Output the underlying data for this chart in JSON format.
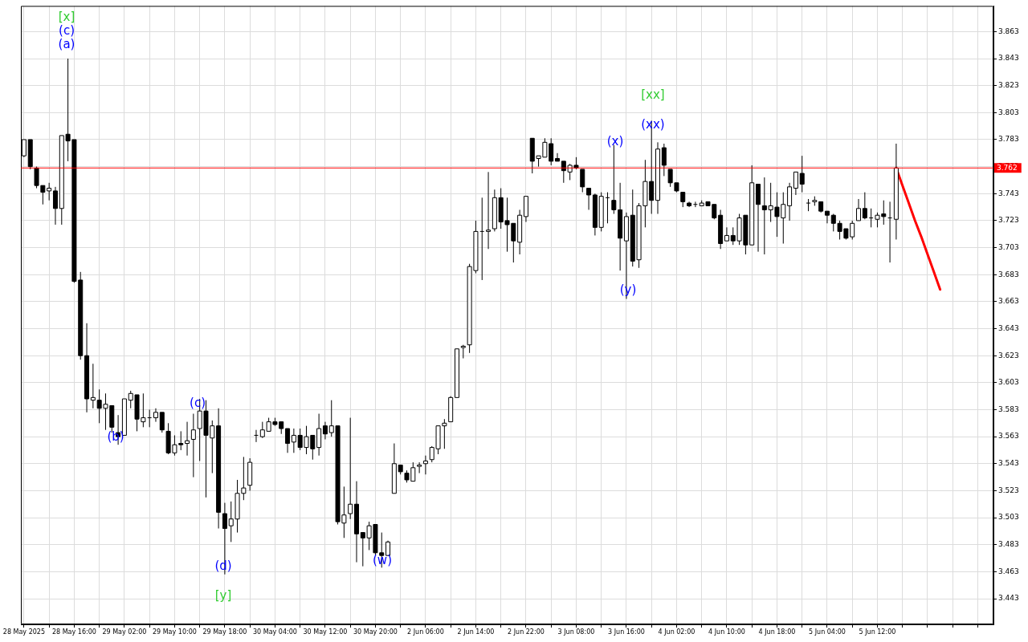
{
  "chart_data": {
    "type": "candlestick",
    "categories": [
      "28 May 2025",
      null,
      null,
      null,
      null,
      null,
      null,
      null,
      "28 May 16:00",
      null,
      null,
      null,
      null,
      null,
      null,
      null,
      "29 May 02:00",
      null,
      null,
      null,
      null,
      null,
      null,
      null,
      "29 May 10:00",
      null,
      null,
      null,
      null,
      null,
      null,
      null,
      "29 May 18:00",
      null,
      null,
      null,
      null,
      null,
      null,
      null,
      "30 May 04:00",
      null,
      null,
      null,
      null,
      null,
      null,
      null,
      "30 May 12:00",
      null,
      null,
      null,
      null,
      null,
      null,
      null,
      "30 May 20:00",
      null,
      null,
      null,
      null,
      null,
      null,
      null,
      "2 Jun 06:00",
      null,
      null,
      null,
      null,
      null,
      null,
      null,
      "2 Jun 14:00",
      null,
      null,
      null,
      null,
      null,
      null,
      null,
      "2 Jun 22:00",
      null,
      null,
      null,
      null,
      null,
      null,
      null,
      "3 Jun 08:00",
      null,
      null,
      null,
      null,
      null,
      null,
      null,
      "3 Jun 16:00",
      null,
      null,
      null,
      null,
      null,
      null,
      null,
      "4 Jun 02:00",
      null,
      null,
      null,
      null,
      null,
      null,
      null,
      "4 Jun 10:00",
      null,
      null,
      null,
      null,
      null,
      null,
      null,
      "4 Jun 18:00",
      null,
      null,
      null,
      null,
      null,
      null,
      null,
      "5 Jun 04:00",
      null,
      null,
      null,
      null,
      null,
      null,
      null,
      "5 Jun 12:00",
      null,
      null,
      null,
      null,
      null,
      null,
      null,
      null,
      null,
      null,
      null,
      null,
      null,
      null,
      null,
      null,
      null,
      null
    ],
    "ohlc": [
      [
        3.771,
        3.783,
        3.77,
        3.783
      ],
      [
        3.783,
        3.783,
        3.761,
        3.763
      ],
      [
        3.762,
        3.763,
        3.747,
        3.749
      ],
      [
        3.749,
        3.749,
        3.735,
        3.744
      ],
      [
        3.745,
        3.751,
        3.738,
        3.747
      ],
      [
        3.745,
        3.748,
        3.72,
        3.732
      ],
      [
        3.732,
        3.786,
        3.72,
        3.786
      ],
      [
        3.787,
        3.843,
        3.767,
        3.782
      ],
      [
        3.783,
        3.783,
        3.677,
        3.678
      ],
      [
        3.679,
        3.685,
        3.62,
        3.623
      ],
      [
        3.623,
        3.647,
        3.581,
        3.591
      ],
      [
        3.59,
        3.617,
        3.584,
        3.592
      ],
      [
        3.59,
        3.598,
        3.573,
        3.584
      ],
      [
        3.584,
        3.595,
        3.568,
        3.587
      ],
      [
        3.586,
        3.586,
        3.566,
        3.57
      ],
      [
        3.566,
        3.579,
        3.557,
        3.563
      ],
      [
        3.564,
        3.591,
        3.564,
        3.591
      ],
      [
        3.59,
        3.597,
        3.584,
        3.595
      ],
      [
        3.594,
        3.594,
        3.567,
        3.576
      ],
      [
        3.574,
        3.595,
        3.57,
        3.577
      ],
      [
        3.577,
        3.583,
        3.57,
        3.577
      ],
      [
        3.577,
        3.584,
        3.574,
        3.581
      ],
      [
        3.581,
        3.581,
        3.566,
        3.568
      ],
      [
        3.567,
        3.573,
        3.55,
        3.551
      ],
      [
        3.551,
        3.564,
        3.549,
        3.557
      ],
      [
        3.558,
        3.567,
        3.553,
        3.557
      ],
      [
        3.558,
        3.574,
        3.549,
        3.56
      ],
      [
        3.561,
        3.58,
        3.533,
        3.568
      ],
      [
        3.569,
        3.591,
        3.545,
        3.582
      ],
      [
        3.582,
        3.59,
        3.518,
        3.564
      ],
      [
        3.562,
        3.575,
        3.536,
        3.571
      ],
      [
        3.571,
        3.584,
        3.495,
        3.507
      ],
      [
        3.506,
        3.514,
        3.461,
        3.495
      ],
      [
        3.497,
        3.515,
        3.485,
        3.502
      ],
      [
        3.502,
        3.531,
        3.492,
        3.521
      ],
      [
        3.521,
        3.548,
        3.516,
        3.525
      ],
      [
        3.527,
        3.547,
        3.523,
        3.544
      ],
      [
        3.564,
        3.568,
        3.559,
        3.564
      ],
      [
        3.563,
        3.574,
        3.562,
        3.568
      ],
      [
        3.567,
        3.577,
        3.567,
        3.574
      ],
      [
        3.574,
        3.577,
        3.571,
        3.572
      ],
      [
        3.574,
        3.574,
        3.565,
        3.569
      ],
      [
        3.569,
        3.569,
        3.551,
        3.558
      ],
      [
        3.559,
        3.569,
        3.551,
        3.564
      ],
      [
        3.564,
        3.569,
        3.553,
        3.555
      ],
      [
        3.555,
        3.571,
        3.55,
        3.563
      ],
      [
        3.564,
        3.564,
        3.546,
        3.554
      ],
      [
        3.555,
        3.58,
        3.549,
        3.569
      ],
      [
        3.571,
        3.574,
        3.561,
        3.565
      ],
      [
        3.566,
        3.59,
        3.563,
        3.571
      ],
      [
        3.571,
        3.571,
        3.498,
        3.5
      ],
      [
        3.499,
        3.526,
        3.488,
        3.505
      ],
      [
        3.506,
        3.577,
        3.502,
        3.513
      ],
      [
        3.513,
        3.53,
        3.47,
        3.491
      ],
      [
        3.492,
        3.492,
        3.467,
        3.488
      ],
      [
        3.488,
        3.5,
        3.479,
        3.497
      ],
      [
        3.498,
        3.498,
        3.475,
        3.477
      ],
      [
        3.477,
        3.492,
        3.466,
        3.475
      ],
      [
        3.475,
        3.486,
        3.475,
        3.485
      ],
      [
        3.521,
        3.558,
        3.521,
        3.543
      ],
      [
        3.542,
        3.542,
        3.535,
        3.537
      ],
      [
        3.536,
        3.538,
        3.529,
        3.531
      ],
      [
        3.53,
        3.544,
        3.53,
        3.54
      ],
      [
        3.541,
        3.544,
        3.536,
        3.542
      ],
      [
        3.543,
        3.549,
        3.535,
        3.545
      ],
      [
        3.546,
        3.556,
        3.544,
        3.555
      ],
      [
        3.554,
        3.571,
        3.55,
        3.571
      ],
      [
        3.571,
        3.576,
        3.554,
        3.573
      ],
      [
        3.574,
        3.593,
        3.574,
        3.592
      ],
      [
        3.592,
        3.628,
        3.592,
        3.628
      ],
      [
        3.629,
        3.631,
        3.621,
        3.63
      ],
      [
        3.631,
        3.691,
        3.625,
        3.689
      ],
      [
        3.686,
        3.723,
        3.684,
        3.715
      ],
      [
        3.715,
        3.74,
        3.679,
        3.715
      ],
      [
        3.715,
        3.759,
        3.702,
        3.716
      ],
      [
        3.717,
        3.746,
        3.715,
        3.74
      ],
      [
        3.74,
        3.747,
        3.717,
        3.722
      ],
      [
        3.723,
        3.74,
        3.7,
        3.72
      ],
      [
        3.721,
        3.721,
        3.692,
        3.708
      ],
      [
        3.707,
        3.731,
        3.698,
        3.727
      ],
      [
        3.726,
        3.741,
        3.722,
        3.741
      ],
      [
        3.784,
        3.784,
        3.758,
        3.767
      ],
      [
        3.769,
        3.771,
        3.763,
        3.771
      ],
      [
        3.77,
        3.784,
        3.77,
        3.781
      ],
      [
        3.78,
        3.784,
        3.764,
        3.767
      ],
      [
        3.769,
        3.773,
        3.767,
        3.767
      ],
      [
        3.767,
        3.767,
        3.751,
        3.76
      ],
      [
        3.759,
        3.765,
        3.753,
        3.764
      ],
      [
        3.764,
        3.77,
        3.761,
        3.762
      ],
      [
        3.761,
        3.761,
        3.744,
        3.748
      ],
      [
        3.747,
        3.747,
        3.731,
        3.742
      ],
      [
        3.742,
        3.743,
        3.712,
        3.718
      ],
      [
        3.718,
        3.744,
        3.715,
        3.741
      ],
      [
        3.74,
        3.744,
        3.721,
        3.74
      ],
      [
        3.738,
        3.779,
        3.728,
        3.731
      ],
      [
        3.731,
        3.751,
        3.686,
        3.71
      ],
      [
        3.708,
        3.729,
        3.665,
        3.726
      ],
      [
        3.727,
        3.746,
        3.689,
        3.693
      ],
      [
        3.694,
        3.736,
        3.688,
        3.734
      ],
      [
        3.734,
        3.768,
        3.718,
        3.752
      ],
      [
        3.752,
        3.797,
        3.728,
        3.738
      ],
      [
        3.738,
        3.781,
        3.728,
        3.776
      ],
      [
        3.777,
        3.78,
        3.756,
        3.764
      ],
      [
        3.761,
        3.761,
        3.748,
        3.751
      ],
      [
        3.751,
        3.751,
        3.744,
        3.745
      ],
      [
        3.744,
        3.744,
        3.733,
        3.737
      ],
      [
        3.736,
        3.737,
        3.733,
        3.734
      ],
      [
        3.735,
        3.737,
        3.733,
        3.735
      ],
      [
        3.734,
        3.738,
        3.734,
        3.736
      ],
      [
        3.737,
        3.737,
        3.734,
        3.734
      ],
      [
        3.735,
        3.735,
        3.724,
        3.725
      ],
      [
        3.727,
        3.731,
        3.702,
        3.706
      ],
      [
        3.708,
        3.718,
        3.708,
        3.712
      ],
      [
        3.712,
        3.718,
        3.705,
        3.708
      ],
      [
        3.708,
        3.728,
        3.705,
        3.725
      ],
      [
        3.727,
        3.727,
        3.698,
        3.705
      ],
      [
        3.705,
        3.764,
        3.705,
        3.751
      ],
      [
        3.75,
        3.75,
        3.7,
        3.735
      ],
      [
        3.734,
        3.755,
        3.698,
        3.731
      ],
      [
        3.731,
        3.751,
        3.722,
        3.734
      ],
      [
        3.733,
        3.744,
        3.711,
        3.726
      ],
      [
        3.725,
        3.744,
        3.706,
        3.735
      ],
      [
        3.734,
        3.751,
        3.723,
        3.748
      ],
      [
        3.747,
        3.759,
        3.742,
        3.759
      ],
      [
        3.758,
        3.771,
        3.744,
        3.75
      ],
      [
        3.736,
        3.739,
        3.73,
        3.736
      ],
      [
        3.737,
        3.741,
        3.734,
        3.738
      ],
      [
        3.737,
        3.737,
        3.729,
        3.73
      ],
      [
        3.73,
        3.73,
        3.721,
        3.727
      ],
      [
        3.727,
        3.728,
        3.715,
        3.721
      ],
      [
        3.721,
        3.723,
        3.709,
        3.715
      ],
      [
        3.717,
        3.717,
        3.709,
        3.71
      ],
      [
        3.711,
        3.723,
        3.709,
        3.721
      ],
      [
        3.723,
        3.739,
        3.723,
        3.732
      ],
      [
        3.732,
        3.744,
        3.724,
        3.725
      ],
      [
        3.725,
        3.732,
        3.718,
        3.725
      ],
      [
        3.724,
        3.729,
        3.718,
        3.727
      ],
      [
        3.728,
        3.738,
        3.72,
        3.726
      ],
      [
        3.725,
        3.737,
        3.692,
        3.725
      ],
      [
        3.724,
        3.78,
        3.709,
        3.762
      ],
      null,
      null,
      null,
      null,
      null,
      null,
      null,
      null,
      null,
      null,
      null,
      null,
      null,
      null,
      null
    ],
    "series": [
      {
        "type": "line",
        "color": "#ff0000",
        "values": [
          null,
          null,
          null,
          null,
          null,
          null,
          null,
          null,
          null,
          null,
          null,
          null,
          null,
          null,
          null,
          null,
          null,
          null,
          null,
          null,
          null,
          null,
          null,
          null,
          null,
          null,
          null,
          null,
          null,
          null,
          null,
          null,
          null,
          null,
          null,
          null,
          null,
          null,
          null,
          null,
          null,
          null,
          null,
          null,
          null,
          null,
          null,
          null,
          null,
          null,
          null,
          null,
          null,
          null,
          null,
          null,
          null,
          null,
          null,
          null,
          null,
          null,
          null,
          null,
          null,
          null,
          null,
          null,
          null,
          null,
          null,
          null,
          null,
          null,
          null,
          null,
          null,
          null,
          null,
          null,
          null,
          null,
          null,
          null,
          null,
          null,
          null,
          null,
          null,
          null,
          null,
          null,
          null,
          null,
          null,
          null,
          null,
          null,
          null,
          null,
          null,
          null,
          null,
          null,
          null,
          null,
          null,
          null,
          null,
          null,
          null,
          null,
          null,
          null,
          null,
          null,
          null,
          null,
          null,
          null,
          null,
          null,
          null,
          null,
          null,
          null,
          null,
          null,
          null,
          null,
          null,
          null,
          null,
          null,
          null,
          null,
          null,
          null,
          null,
          3.762,
          3.749,
          3.736,
          3.723,
          3.711,
          3.698,
          3.685,
          3.672,
          null,
          null,
          null,
          null,
          null,
          null,
          null,
          null
        ]
      }
    ],
    "ylim": [
      3.424,
      3.882
    ],
    "yticks": [
      3.443,
      3.463,
      3.483,
      3.503,
      3.523,
      3.543,
      3.563,
      3.583,
      3.603,
      3.623,
      3.643,
      3.663,
      3.683,
      3.703,
      3.723,
      3.743,
      3.763,
      3.783,
      3.803,
      3.823,
      3.843,
      3.863
    ],
    "grid": true,
    "ref_lines": [
      {
        "axis": "y",
        "value": 3.762,
        "label": "3.762",
        "color": "#ff0000"
      }
    ],
    "annotations": [
      "[x]",
      "(c)",
      "(a)",
      "(b)",
      "(c)",
      "(d)",
      "[y]",
      "(w)",
      "(x)",
      "(y)",
      "[xx]",
      "(xx)"
    ]
  }
}
